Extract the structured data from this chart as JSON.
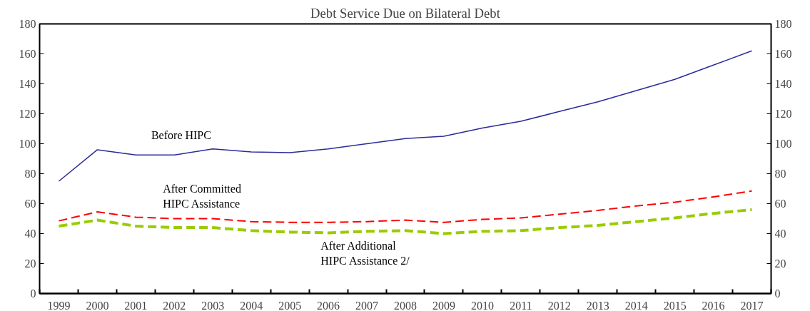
{
  "chart_data": {
    "type": "line",
    "title": "Debt Service Due on Bilateral Debt",
    "categories": [
      "1999",
      "2000",
      "2001",
      "2002",
      "2003",
      "2004",
      "2005",
      "2006",
      "2007",
      "2008",
      "2009",
      "2010",
      "2011",
      "2012",
      "2013",
      "2014",
      "2015",
      "2016",
      "2017"
    ],
    "series": [
      {
        "name": "Before HIPC",
        "color": "#2b2b9a",
        "line_style": "solid",
        "values": [
          75,
          96,
          92.5,
          92.5,
          96.5,
          94.5,
          94,
          96.5,
          100,
          103.5,
          105,
          110.5,
          115,
          121.5,
          128,
          135.5,
          143,
          152.5,
          162
        ]
      },
      {
        "name": "After Committed\nHIPC Assistance",
        "color": "#ff0000",
        "line_style": "dashed",
        "values": [
          48.5,
          54.5,
          51,
          50,
          50,
          48,
          47.5,
          47.5,
          48,
          49,
          47.5,
          49.5,
          50.5,
          53,
          55.5,
          58.5,
          61,
          64.5,
          68.5
        ]
      },
      {
        "name": "After Additional\nHIPC Assistance  2/",
        "color": "#99cc00",
        "line_style": "dashed",
        "values": [
          45,
          49,
          45,
          44,
          44,
          42,
          41,
          40.5,
          41.5,
          42,
          40,
          41.5,
          42,
          44,
          45.5,
          48,
          50.5,
          53.5,
          56
        ]
      }
    ],
    "ylim": [
      0,
      180
    ],
    "yticks": [
      0,
      20,
      40,
      60,
      80,
      100,
      120,
      140,
      160,
      180
    ],
    "y2lim": [
      0,
      180
    ],
    "y2ticks": [
      0,
      20,
      40,
      60,
      80,
      100,
      120,
      140,
      160,
      180
    ],
    "grid": false
  }
}
